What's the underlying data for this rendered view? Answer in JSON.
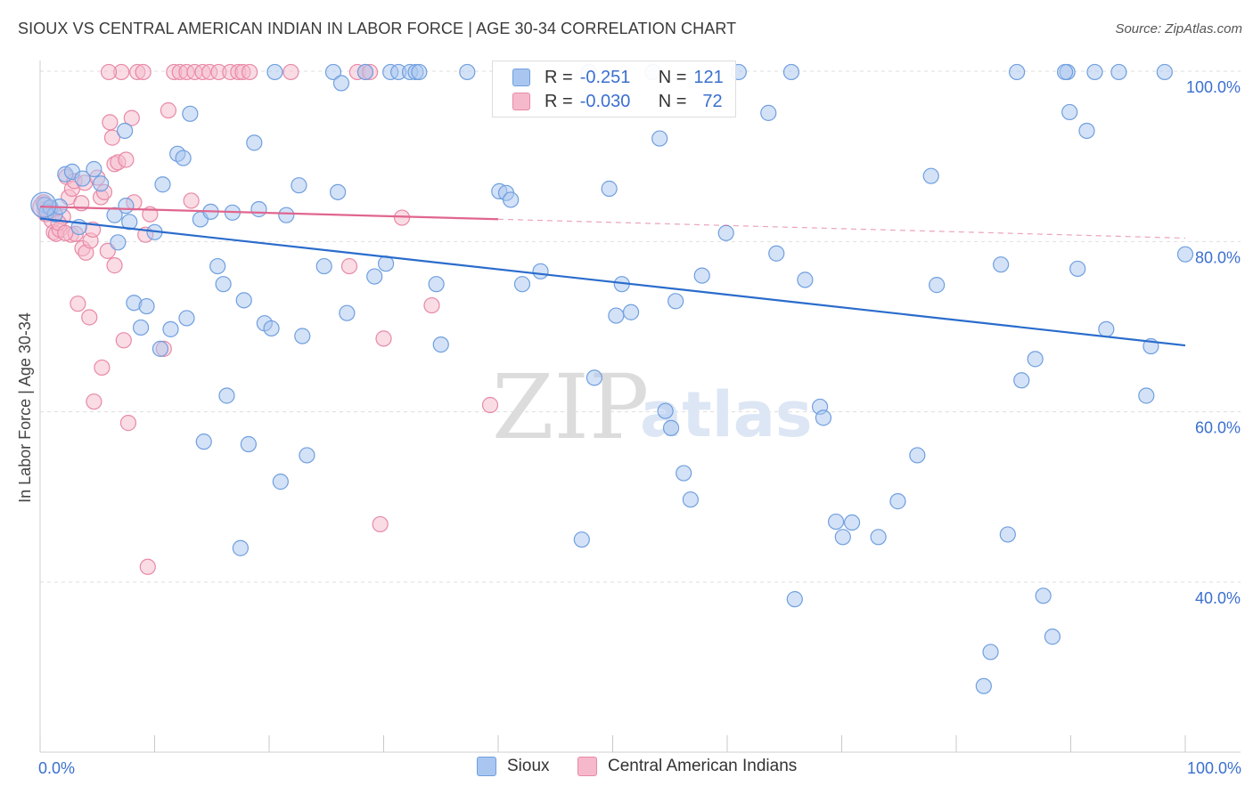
{
  "header": {
    "title": "SIOUX VS CENTRAL AMERICAN INDIAN IN LABOR FORCE | AGE 30-34 CORRELATION CHART",
    "source": "Source: ZipAtlas.com"
  },
  "watermark": {
    "zip": "ZIP",
    "atlas": "atlas"
  },
  "legend": {
    "rows": [
      {
        "r_label": "R =",
        "r_value": "-0.251",
        "n_label": "N =",
        "n_value": "121"
      },
      {
        "r_label": "R =",
        "r_value": "-0.030",
        "n_label": "N =",
        "n_value": "72"
      }
    ]
  },
  "colors": {
    "sioux_fill": "#a9c6f0",
    "sioux_stroke": "#6f9fdf",
    "sioux_line": "#2a6ccc",
    "cai_fill": "#f6b9cc",
    "cai_stroke": "#e889a6",
    "cai_line": "#e0668e",
    "axis_text": "#3b6fcf",
    "grid": "#dedede"
  },
  "chart_data": {
    "type": "scatter",
    "title": "SIOUX VS CENTRAL AMERICAN INDIAN IN LABOR FORCE | AGE 30-34 CORRELATION CHART",
    "xlabel": "",
    "ylabel": "In Labor Force | Age 30-34",
    "xlim": [
      0,
      100
    ],
    "ylim": [
      20,
      103
    ],
    "x_tick_labels": [
      {
        "value": 0,
        "label": "0.0%"
      },
      {
        "value": 100,
        "label": "100.0%"
      }
    ],
    "y_tick_labels": [
      {
        "value": 100,
        "label": "100.0%"
      },
      {
        "value": 80,
        "label": "80.0%"
      },
      {
        "value": 60,
        "label": "60.0%"
      },
      {
        "value": 40,
        "label": "40.0%"
      }
    ],
    "series": [
      {
        "name": "Sioux",
        "trend": {
          "x": [
            0,
            100
          ],
          "y": [
            82.7,
            67.8
          ],
          "dashed_from": null
        },
        "points": [
          [
            0.4,
            84.3
          ],
          [
            0.6,
            83.5
          ],
          [
            0.9,
            84.0
          ],
          [
            1.3,
            83.2
          ],
          [
            1.7,
            84.1
          ],
          [
            2.2,
            87.9
          ],
          [
            2.8,
            88.2
          ],
          [
            3.4,
            81.7
          ],
          [
            3.7,
            87.4
          ],
          [
            4.7,
            88.5
          ],
          [
            5.3,
            86.8
          ],
          [
            6.5,
            83.1
          ],
          [
            6.8,
            79.9
          ],
          [
            7.4,
            93.0
          ],
          [
            7.5,
            84.2
          ],
          [
            7.8,
            82.3
          ],
          [
            8.2,
            72.8
          ],
          [
            8.8,
            69.9
          ],
          [
            9.3,
            72.4
          ],
          [
            10.0,
            81.1
          ],
          [
            10.5,
            67.4
          ],
          [
            10.7,
            86.7
          ],
          [
            11.4,
            69.7
          ],
          [
            12.0,
            90.3
          ],
          [
            12.5,
            89.8
          ],
          [
            12.8,
            71.0
          ],
          [
            13.1,
            95.0
          ],
          [
            14.0,
            82.6
          ],
          [
            14.3,
            56.5
          ],
          [
            14.9,
            83.5
          ],
          [
            15.5,
            77.1
          ],
          [
            16.0,
            75.0
          ],
          [
            16.3,
            61.9
          ],
          [
            16.8,
            83.4
          ],
          [
            17.5,
            44.0
          ],
          [
            17.8,
            73.1
          ],
          [
            18.2,
            56.2
          ],
          [
            18.7,
            91.6
          ],
          [
            19.1,
            83.8
          ],
          [
            19.6,
            70.4
          ],
          [
            20.2,
            69.8
          ],
          [
            20.5,
            99.9
          ],
          [
            21.0,
            51.8
          ],
          [
            21.5,
            83.1
          ],
          [
            22.6,
            86.6
          ],
          [
            22.9,
            68.9
          ],
          [
            23.3,
            54.9
          ],
          [
            24.8,
            77.1
          ],
          [
            25.6,
            99.9
          ],
          [
            26.0,
            85.8
          ],
          [
            26.3,
            98.6
          ],
          [
            26.8,
            71.6
          ],
          [
            29.2,
            75.9
          ],
          [
            30.2,
            77.4
          ],
          [
            28.4,
            99.9
          ],
          [
            30.6,
            99.9
          ],
          [
            31.3,
            99.9
          ],
          [
            32.3,
            99.9
          ],
          [
            32.8,
            99.9
          ],
          [
            33.1,
            99.9
          ],
          [
            34.6,
            75.0
          ],
          [
            35.0,
            67.9
          ],
          [
            37.3,
            99.9
          ],
          [
            40.1,
            85.9
          ],
          [
            40.7,
            85.7
          ],
          [
            41.1,
            84.9
          ],
          [
            42.1,
            75.0
          ],
          [
            43.7,
            76.5
          ],
          [
            47.3,
            45.0
          ],
          [
            47.9,
            99.9
          ],
          [
            48.4,
            64.0
          ],
          [
            49.7,
            86.2
          ],
          [
            50.3,
            71.3
          ],
          [
            50.8,
            75.0
          ],
          [
            51.6,
            71.7
          ],
          [
            53.5,
            99.9
          ],
          [
            54.1,
            92.1
          ],
          [
            54.6,
            60.1
          ],
          [
            55.1,
            58.1
          ],
          [
            56.2,
            52.8
          ],
          [
            57.8,
            76.0
          ],
          [
            55.5,
            73.0
          ],
          [
            56.8,
            49.7
          ],
          [
            59.9,
            81.0
          ],
          [
            61.0,
            99.9
          ],
          [
            63.6,
            95.1
          ],
          [
            64.3,
            78.6
          ],
          [
            65.6,
            99.9
          ],
          [
            65.9,
            38.0
          ],
          [
            66.8,
            75.5
          ],
          [
            68.1,
            60.6
          ],
          [
            68.4,
            59.3
          ],
          [
            69.5,
            47.1
          ],
          [
            70.1,
            45.3
          ],
          [
            70.9,
            47.0
          ],
          [
            73.2,
            45.3
          ],
          [
            74.9,
            49.5
          ],
          [
            76.6,
            54.9
          ],
          [
            77.8,
            87.7
          ],
          [
            78.3,
            74.9
          ],
          [
            82.4,
            27.8
          ],
          [
            83.0,
            31.8
          ],
          [
            83.9,
            77.3
          ],
          [
            84.5,
            45.6
          ],
          [
            85.3,
            99.9
          ],
          [
            85.7,
            63.7
          ],
          [
            86.9,
            66.2
          ],
          [
            87.6,
            38.4
          ],
          [
            88.4,
            33.6
          ],
          [
            89.7,
            99.9
          ],
          [
            89.5,
            99.9
          ],
          [
            89.9,
            95.2
          ],
          [
            90.6,
            76.8
          ],
          [
            91.4,
            93.0
          ],
          [
            92.1,
            99.9
          ],
          [
            93.1,
            69.7
          ],
          [
            94.2,
            99.9
          ],
          [
            96.6,
            61.9
          ],
          [
            97.0,
            67.7
          ],
          [
            98.2,
            99.9
          ],
          [
            100.0,
            78.5
          ]
        ]
      },
      {
        "name": "Central American Indians",
        "trend": {
          "x": [
            0,
            100
          ],
          "y": [
            84.1,
            80.4
          ],
          "dashed_from": 40
        },
        "points": [
          [
            0.3,
            84.6
          ],
          [
            0.5,
            83.2
          ],
          [
            0.8,
            83.9
          ],
          [
            1.0,
            82.5
          ],
          [
            1.2,
            81.1
          ],
          [
            1.4,
            80.9
          ],
          [
            1.7,
            81.4
          ],
          [
            2.0,
            82.9
          ],
          [
            2.3,
            87.6
          ],
          [
            2.5,
            85.2
          ],
          [
            2.7,
            80.8
          ],
          [
            2.8,
            86.2
          ],
          [
            3.0,
            87.1
          ],
          [
            3.1,
            80.9
          ],
          [
            3.3,
            72.7
          ],
          [
            3.6,
            84.5
          ],
          [
            3.7,
            79.2
          ],
          [
            3.9,
            86.9
          ],
          [
            4.0,
            78.7
          ],
          [
            4.3,
            71.1
          ],
          [
            4.4,
            80.1
          ],
          [
            4.6,
            81.4
          ],
          [
            4.7,
            61.2
          ],
          [
            5.0,
            87.5
          ],
          [
            5.3,
            85.2
          ],
          [
            5.4,
            65.2
          ],
          [
            5.6,
            85.8
          ],
          [
            5.9,
            78.9
          ],
          [
            6.1,
            94.0
          ],
          [
            6.3,
            92.2
          ],
          [
            6.5,
            77.2
          ],
          [
            6.5,
            89.1
          ],
          [
            6.8,
            89.3
          ],
          [
            7.1,
            99.9
          ],
          [
            7.3,
            68.4
          ],
          [
            7.5,
            89.6
          ],
          [
            7.7,
            58.7
          ],
          [
            8.0,
            94.5
          ],
          [
            8.2,
            84.6
          ],
          [
            8.5,
            99.9
          ],
          [
            9.2,
            80.8
          ],
          [
            9.4,
            41.8
          ],
          [
            9.6,
            83.2
          ],
          [
            10.8,
            67.4
          ],
          [
            11.2,
            95.4
          ],
          [
            11.7,
            99.9
          ],
          [
            12.2,
            99.9
          ],
          [
            12.8,
            99.9
          ],
          [
            13.2,
            84.8
          ],
          [
            13.5,
            99.9
          ],
          [
            14.2,
            99.9
          ],
          [
            14.8,
            99.9
          ],
          [
            15.6,
            99.9
          ],
          [
            16.6,
            99.9
          ],
          [
            17.3,
            99.9
          ],
          [
            17.7,
            99.9
          ],
          [
            18.3,
            99.9
          ],
          [
            21.9,
            99.9
          ],
          [
            27.0,
            77.1
          ],
          [
            27.7,
            99.9
          ],
          [
            28.4,
            99.9
          ],
          [
            28.8,
            99.9
          ],
          [
            29.7,
            46.8
          ],
          [
            30.0,
            68.6
          ],
          [
            31.6,
            82.8
          ],
          [
            34.2,
            72.5
          ],
          [
            39.3,
            60.8
          ],
          [
            0.4,
            83.8
          ],
          [
            1.6,
            82.2
          ],
          [
            2.2,
            81.0
          ],
          [
            9.0,
            99.9
          ],
          [
            6.0,
            99.9
          ]
        ]
      }
    ],
    "legend_position": "top-center",
    "grid": true
  },
  "bottom_legend": {
    "sioux": "Sioux",
    "cai": "Central American Indians"
  }
}
